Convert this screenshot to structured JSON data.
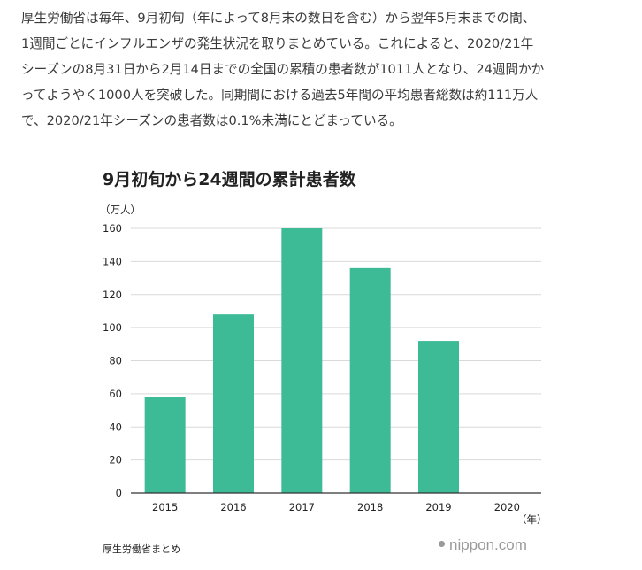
{
  "article": {
    "paragraph": "厚生労働省は毎年、9月初旬（年によって8月末の数日を含む）から翌年5月末までの間、\n1週間ごとにインフルエンザの発生状況を取りまとめている。これによると、2020/21年\nシーズンの8月31日から2月14日までの全国の累積の患者数が1011人となり、24週間かか\nってようやく1000人を突破した。同期間における過去5年間の平均患者総数は約111万人\nで、2020/21年シーズンの患者数は0.1%未満にとどまっている。"
  },
  "footer": {
    "source": "厚生労働省まとめ",
    "brand": "nippon.com"
  },
  "chart_data": {
    "type": "bar",
    "title": "9月初旬から24週間の累計患者数",
    "ylabel": "（万人）",
    "xlabel": "（年）",
    "categories": [
      "2015",
      "2016",
      "2017",
      "2018",
      "2019",
      "2020"
    ],
    "values": [
      58,
      108,
      160,
      136,
      92,
      0.1
    ],
    "ylim": [
      0,
      160
    ],
    "yticks": [
      0,
      20,
      40,
      60,
      80,
      100,
      120,
      140,
      160
    ],
    "grid": true,
    "bar_color": "#3dba96",
    "grid_color": "#d9d9d9",
    "axis_color": "#333333"
  }
}
